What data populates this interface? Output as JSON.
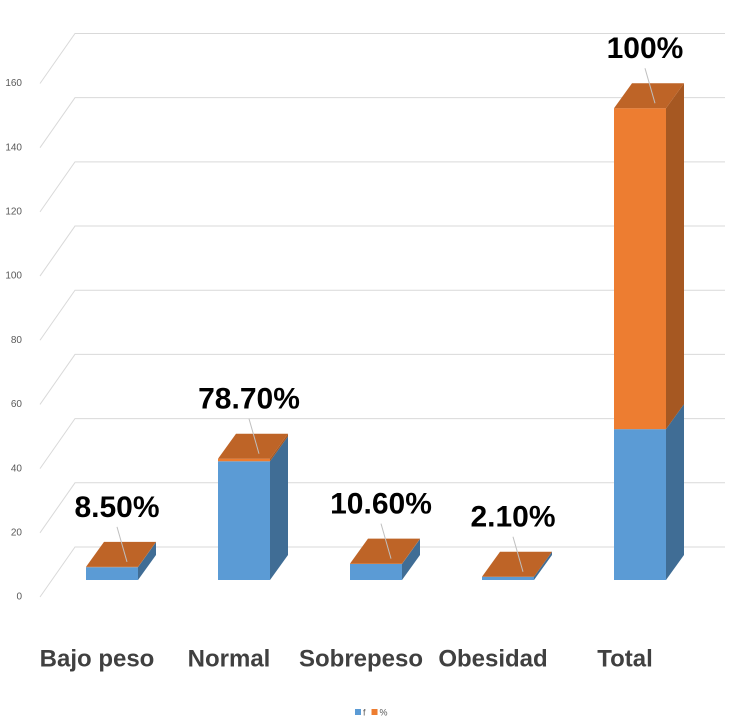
{
  "chart_data": {
    "type": "bar3d_stacked",
    "categories": [
      "Bajo peso",
      "Normal",
      "Sobrepeso",
      "Obesidad",
      "Total"
    ],
    "series": [
      {
        "name": "f",
        "color": "#5b9bd5",
        "values": [
          4,
          37,
          5,
          1,
          47
        ]
      },
      {
        "name": "%",
        "color": "#ed7d31",
        "values": [
          0.085,
          0.787,
          0.106,
          0.021,
          100
        ],
        "value_labels": [
          "8.50%",
          "78.70%",
          "10.60%",
          "2.10%",
          "100%"
        ]
      }
    ],
    "ylim": [
      0,
      160
    ],
    "yticks": [
      0,
      20,
      40,
      60,
      80,
      100,
      120,
      140,
      160
    ],
    "grid": true,
    "stacked": true,
    "legend": "bottom"
  }
}
